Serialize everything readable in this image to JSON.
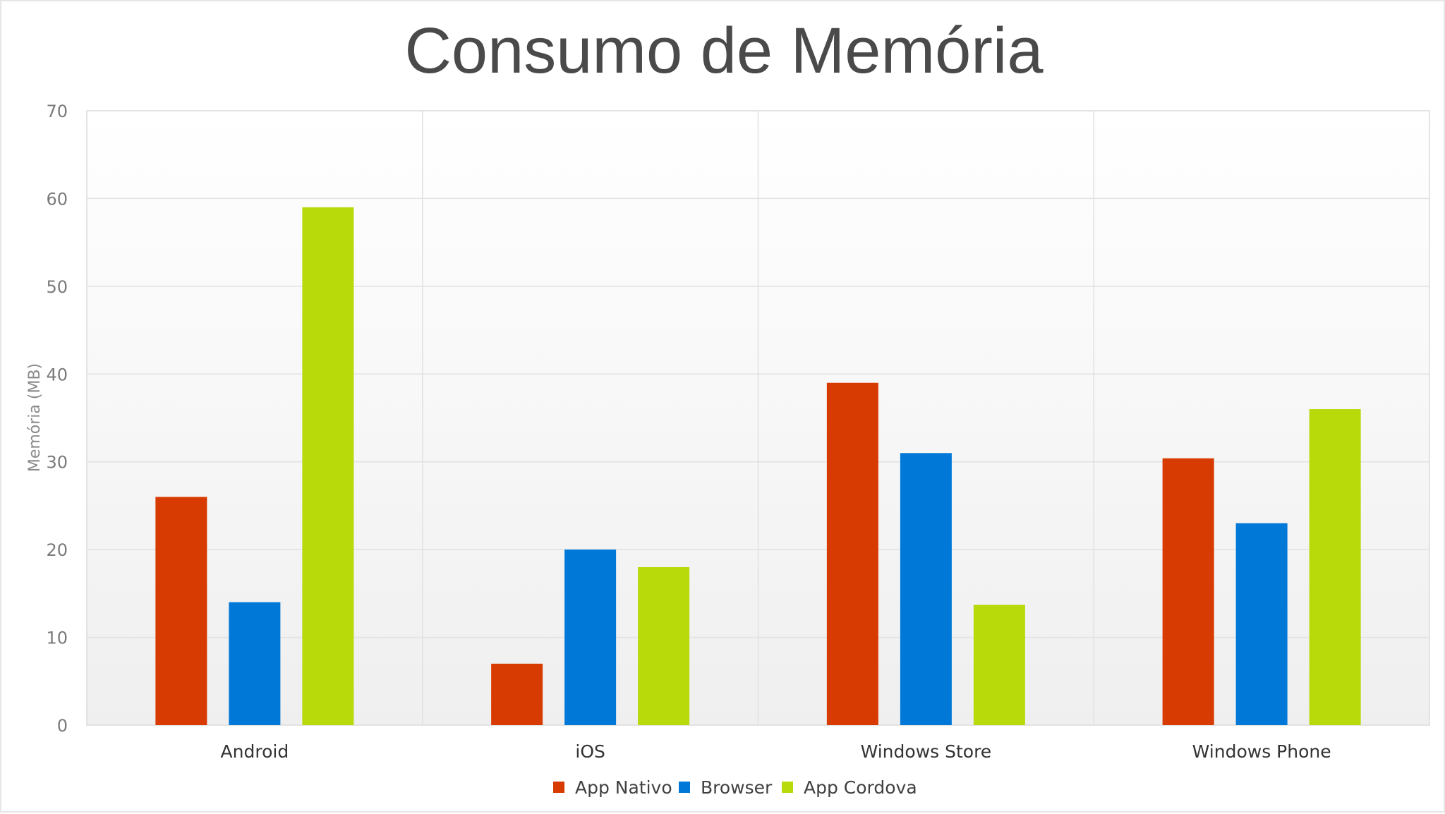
{
  "chart_data": {
    "type": "bar",
    "title": "Consumo de Memória",
    "xlabel": "",
    "ylabel": "Memória (MB)",
    "ylim": [
      0,
      70
    ],
    "yticks": [
      0,
      10,
      20,
      30,
      40,
      50,
      60,
      70
    ],
    "categories": [
      "Android",
      "iOS",
      "Windows Store",
      "Windows Phone"
    ],
    "series": [
      {
        "name": "App Nativo",
        "color": "#d83b01",
        "values": [
          26,
          7,
          39,
          30.4
        ]
      },
      {
        "name": "Browser",
        "color": "#0078d7",
        "values": [
          14,
          20,
          31,
          23
        ]
      },
      {
        "name": "App Cordova",
        "color": "#b8d90a",
        "values": [
          59,
          18,
          13.7,
          36
        ]
      }
    ],
    "grid": true,
    "legend_position": "bottom"
  }
}
